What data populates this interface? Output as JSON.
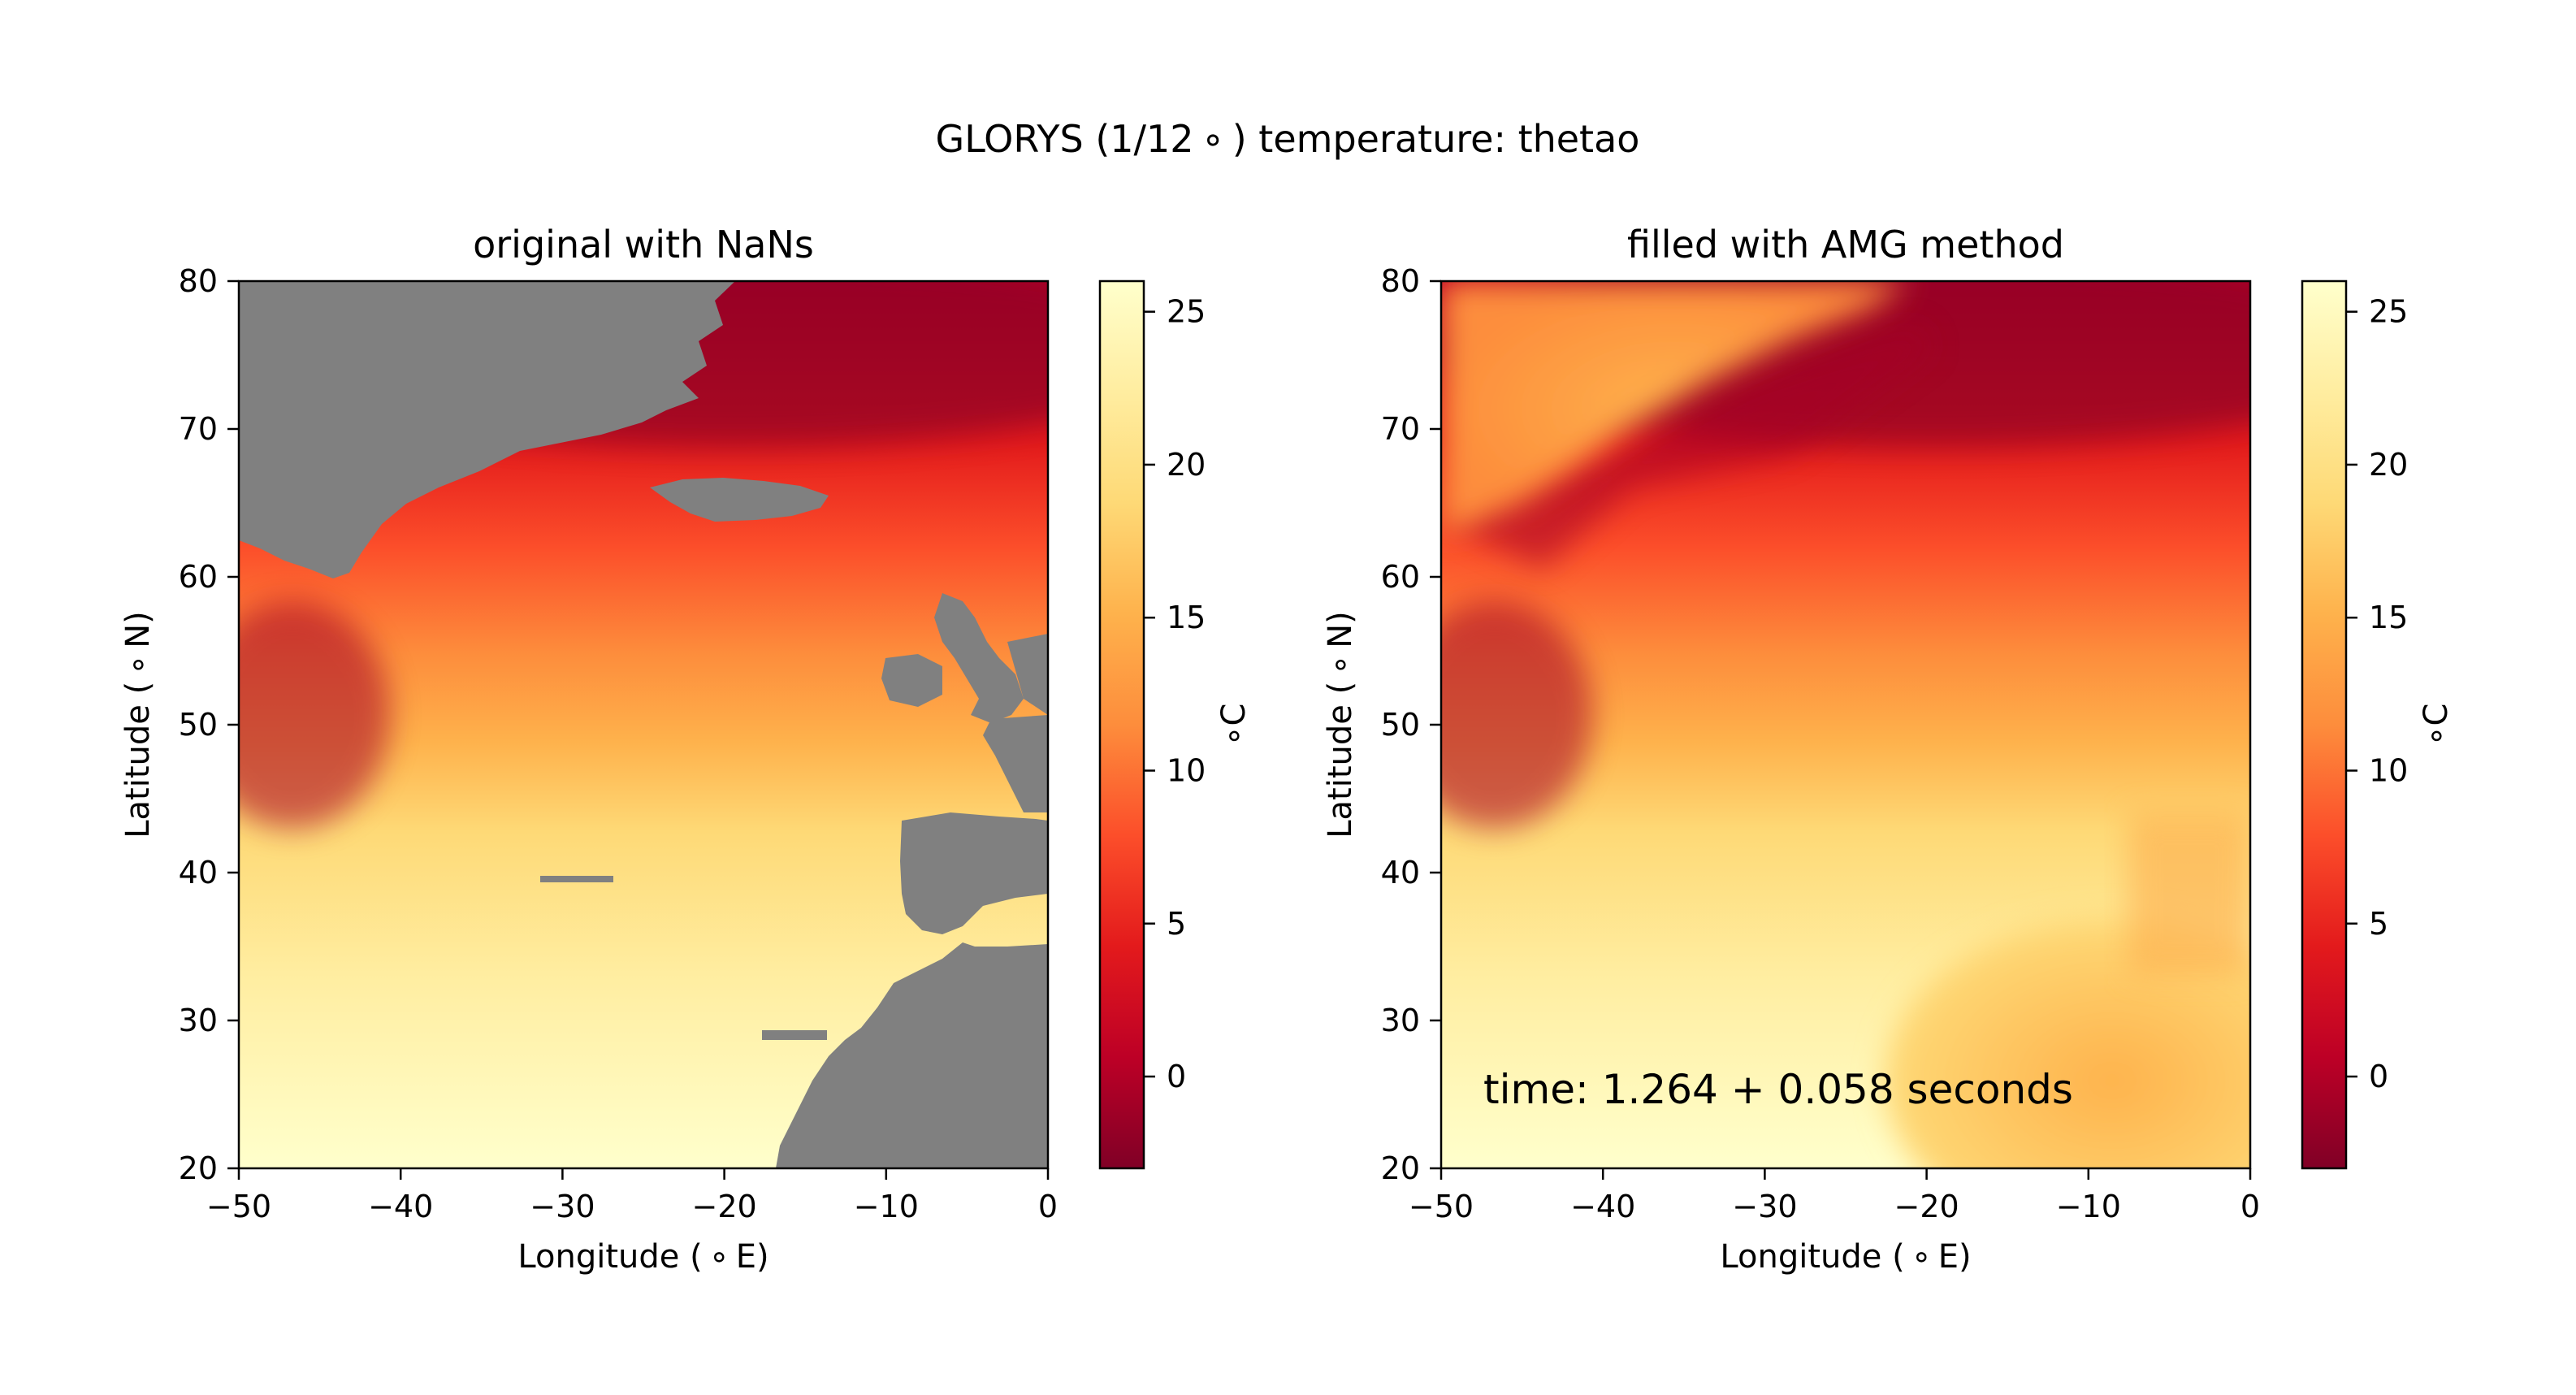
{
  "figure": {
    "suptitle": "GLORYS (1/12$^\\circ$) temperature: thetao"
  },
  "suptitle_text": "GLORYS (1/12 ∘ ) temperature: thetao",
  "colors": {
    "land_nan": "#808080",
    "colormap": [
      "#800026",
      "#bd0026",
      "#e31a1c",
      "#fc4e2a",
      "#fd8d3c",
      "#feb24c",
      "#fed976",
      "#ffeda0",
      "#ffffcc"
    ],
    "background": "#ffffff"
  },
  "chart_data": [
    {
      "type": "heatmap",
      "title": "original with NaNs",
      "xlabel": "Longitude ( ∘ E)",
      "ylabel": "Latitude ( ∘ N)",
      "xlim": [
        -50,
        0
      ],
      "ylim": [
        20,
        80
      ],
      "xticks": [
        -50,
        -40,
        -30,
        -20,
        -10,
        0
      ],
      "xtick_labels": [
        "−50",
        "−40",
        "−30",
        "−20",
        "−10",
        "0"
      ],
      "yticks": [
        20,
        30,
        40,
        50,
        60,
        70,
        80
      ],
      "ytick_labels": [
        "20",
        "30",
        "40",
        "50",
        "60",
        "70",
        "80"
      ],
      "variable": "thetao",
      "nan_regions": [
        "Greenland",
        "Iceland",
        "Ireland",
        "Great Britain",
        "France",
        "Iberia",
        "Northwest Africa",
        "Canary Islands"
      ],
      "colorbar": {
        "label": "∘C",
        "range": [
          -3,
          26
        ],
        "ticks": [
          0,
          5,
          10,
          15,
          20,
          25
        ],
        "tick_labels": [
          "0",
          "5",
          "10",
          "15",
          "20",
          "25"
        ]
      }
    },
    {
      "type": "heatmap",
      "title": "filled with AMG method",
      "xlabel": "Longitude ( ∘ E)",
      "ylabel": "Latitude ( ∘ N)",
      "xlim": [
        -50,
        0
      ],
      "ylim": [
        20,
        80
      ],
      "xticks": [
        -50,
        -40,
        -30,
        -20,
        -10,
        0
      ],
      "xtick_labels": [
        "−50",
        "−40",
        "−30",
        "−20",
        "−10",
        "0"
      ],
      "yticks": [
        20,
        30,
        40,
        50,
        60,
        70,
        80
      ],
      "ytick_labels": [
        "20",
        "30",
        "40",
        "50",
        "60",
        "70",
        "80"
      ],
      "variable": "thetao",
      "annotation": "time: 1.264 + 0.058 seconds",
      "colorbar": {
        "label": "∘C",
        "range": [
          -3,
          26
        ],
        "ticks": [
          0,
          5,
          10,
          15,
          20,
          25
        ],
        "tick_labels": [
          "0",
          "5",
          "10",
          "15",
          "20",
          "25"
        ]
      }
    }
  ]
}
